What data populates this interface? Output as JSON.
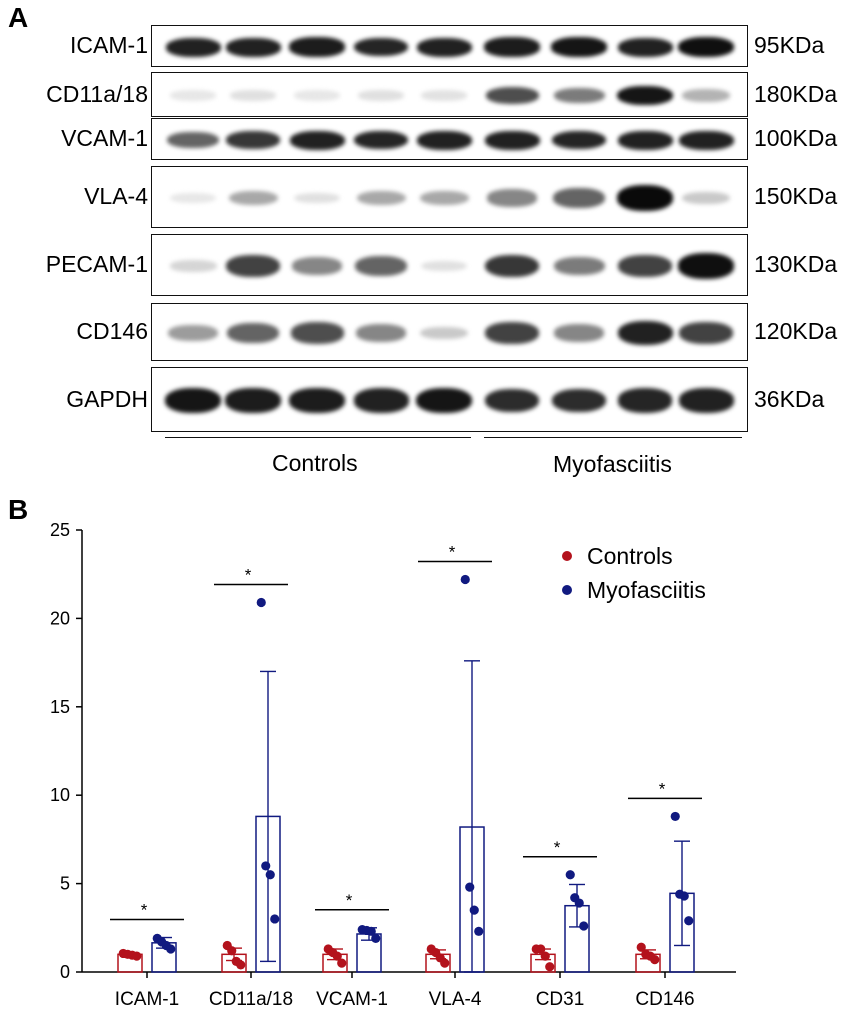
{
  "panel_a": {
    "letter": "A",
    "blots": [
      {
        "protein": "ICAM-1",
        "mw": "95KDa",
        "intensities": [
          0.9,
          0.9,
          0.92,
          0.88,
          0.9,
          0.92,
          0.95,
          0.9,
          0.98
        ]
      },
      {
        "protein": "CD11a/18",
        "mw": "180KDa",
        "intensities": [
          0.02,
          0.05,
          0.02,
          0.05,
          0.04,
          0.7,
          0.5,
          0.95,
          0.25
        ]
      },
      {
        "protein": "VCAM-1",
        "mw": "100KDa",
        "intensities": [
          0.6,
          0.8,
          0.9,
          0.88,
          0.9,
          0.9,
          0.88,
          0.9,
          0.9
        ]
      },
      {
        "protein": "VLA-4",
        "mw": "150KDa",
        "intensities": [
          0.02,
          0.3,
          0.05,
          0.3,
          0.3,
          0.45,
          0.6,
          1.0,
          0.15
        ]
      },
      {
        "protein": "PECAM-1",
        "mw": "130KDa",
        "intensities": [
          0.1,
          0.75,
          0.45,
          0.6,
          0.05,
          0.8,
          0.5,
          0.75,
          0.98
        ]
      },
      {
        "protein": "CD146",
        "mw": "120KDa",
        "intensities": [
          0.35,
          0.6,
          0.7,
          0.45,
          0.15,
          0.75,
          0.45,
          0.9,
          0.75
        ]
      },
      {
        "protein": "GAPDH",
        "mw": "36KDa",
        "intensities": [
          0.95,
          0.92,
          0.92,
          0.9,
          0.95,
          0.85,
          0.85,
          0.88,
          0.9
        ]
      }
    ],
    "groups": [
      "Controls",
      "Myofasciitis"
    ]
  },
  "panel_b": {
    "letter": "B"
  },
  "chart_data": {
    "type": "bar",
    "categories": [
      "ICAM-1",
      "CD11a/18",
      "VCAM-1",
      "VLA-4",
      "CD31",
      "CD146"
    ],
    "ylim": [
      0,
      25
    ],
    "yticks": [
      0,
      5,
      10,
      15,
      20,
      25
    ],
    "xlabel": "",
    "ylabel": "",
    "title": "",
    "legend_position": "top-right",
    "significance_label": "*",
    "series": [
      {
        "name": "Controls",
        "color": "#b3121c",
        "means": [
          1.0,
          1.0,
          1.0,
          1.0,
          1.0,
          1.0
        ],
        "sd": [
          0.05,
          0.35,
          0.3,
          0.25,
          0.3,
          0.25
        ],
        "points": [
          [
            1.05,
            1.0,
            0.95,
            0.9
          ],
          [
            1.5,
            1.2,
            0.6,
            0.4
          ],
          [
            1.3,
            1.1,
            0.9,
            0.5
          ],
          [
            1.3,
            1.1,
            0.8,
            0.5
          ],
          [
            1.3,
            1.3,
            0.9,
            0.3
          ],
          [
            1.4,
            1.0,
            0.9,
            0.7
          ]
        ]
      },
      {
        "name": "Myofasciitis",
        "color": "#111a80",
        "means": [
          1.65,
          8.8,
          2.15,
          8.2,
          3.75,
          4.45
        ],
        "sd": [
          0.3,
          8.2,
          0.35,
          9.4,
          1.2,
          2.95
        ],
        "points": [
          [
            1.9,
            1.7,
            1.5,
            1.3
          ],
          [
            20.9,
            6.0,
            5.5,
            3.0
          ],
          [
            2.4,
            2.35,
            2.3,
            1.9
          ],
          [
            22.2,
            4.8,
            3.5,
            2.3
          ],
          [
            5.5,
            4.2,
            3.9,
            2.6
          ],
          [
            8.8,
            4.4,
            4.3,
            2.9
          ]
        ]
      }
    ]
  }
}
